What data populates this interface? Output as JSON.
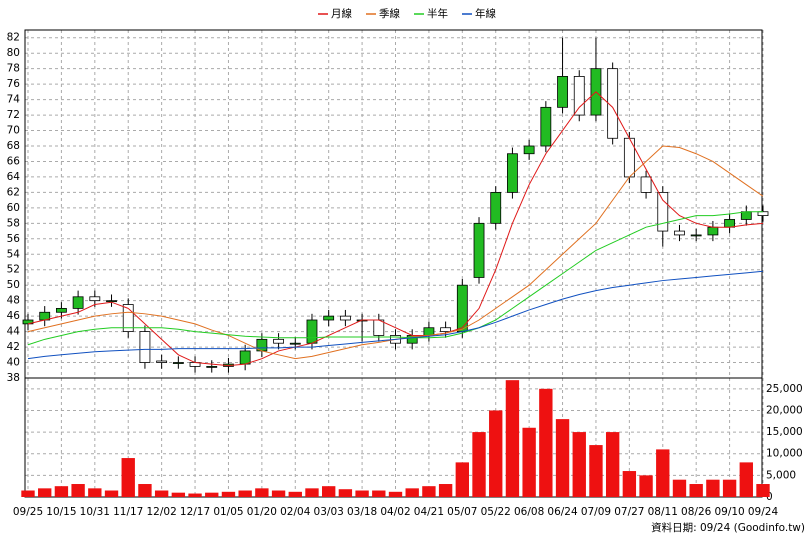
{
  "chart_data": {
    "type": "candlestick",
    "footnote": "資料日期: 09/24 (Goodinfo.tw)",
    "categories": [
      "09/25",
      null,
      "10/15",
      null,
      "10/31",
      null,
      "11/17",
      null,
      "12/02",
      null,
      "12/17",
      null,
      "01/05",
      null,
      "01/20",
      null,
      "02/04",
      null,
      "03/03",
      null,
      "03/18",
      null,
      "04/02",
      null,
      "04/21",
      null,
      "05/07",
      null,
      "05/22",
      null,
      "06/08",
      null,
      "06/24",
      null,
      "07/09",
      null,
      "07/27",
      null,
      "08/11",
      null,
      "08/26",
      null,
      "09/10",
      null,
      "09/24"
    ],
    "open": [
      45,
      45.5,
      46.5,
      47,
      48.5,
      48,
      47.5,
      44,
      40.2,
      40,
      40,
      39.5,
      39.5,
      39.8,
      41.5,
      43,
      42.5,
      42.5,
      45.5,
      46,
      45.5,
      45.5,
      43.5,
      42.5,
      43.5,
      44.5,
      44,
      51,
      58,
      62,
      67,
      68,
      73,
      77,
      72,
      78,
      69,
      64,
      62,
      57,
      56.5,
      56.5,
      57.5,
      58.5,
      59.5
    ],
    "high": [
      46.3,
      47.3,
      47.8,
      49.3,
      49.3,
      48.8,
      48.3,
      44.8,
      41,
      40.8,
      40.8,
      40.3,
      40.6,
      42.3,
      43.8,
      43.8,
      43.3,
      46.3,
      46.8,
      46.8,
      46.3,
      46.3,
      44.3,
      44.3,
      45.3,
      45.3,
      50.8,
      58.8,
      62.8,
      67.8,
      68.8,
      73.8,
      82,
      77.8,
      82,
      78.8,
      69.8,
      64.8,
      62.8,
      57.8,
      57.3,
      58.3,
      59.3,
      60.3,
      60.3
    ],
    "low": [
      44.2,
      44.7,
      45.7,
      46.2,
      47.2,
      47.2,
      43.2,
      39.2,
      39.2,
      39.2,
      38.7,
      38.7,
      38.7,
      39,
      40.7,
      41.7,
      41.7,
      41.7,
      44.7,
      44.7,
      42.7,
      42.7,
      41.7,
      41.7,
      42.7,
      43.2,
      43.2,
      50.2,
      57.2,
      61.2,
      66.2,
      67.2,
      72.2,
      71.2,
      71.2,
      68.2,
      63.2,
      61.2,
      55,
      55.7,
      55.7,
      55.7,
      56.7,
      57.7,
      58.2
    ],
    "close": [
      45.5,
      46.5,
      47,
      48.5,
      48,
      48,
      44,
      40,
      40,
      40,
      39.5,
      39.5,
      39.8,
      41.5,
      43,
      42.5,
      42.5,
      45.5,
      46,
      45.5,
      45.5,
      43.5,
      42.5,
      43.5,
      44.5,
      44,
      50,
      58,
      62,
      67,
      68,
      73,
      77,
      72,
      78,
      69,
      64,
      62,
      57,
      56.5,
      56.5,
      57.5,
      58.5,
      59.5,
      59
    ],
    "up_color": "#22bb22",
    "down_color": "#ffffff",
    "ylim": [
      38,
      83
    ],
    "yticks": [
      38,
      40,
      42,
      44,
      46,
      48,
      50,
      52,
      54,
      56,
      58,
      60,
      62,
      64,
      66,
      68,
      70,
      72,
      74,
      76,
      78,
      80,
      82
    ],
    "grid": true,
    "series": [
      {
        "name": "月線",
        "color": "#e01818",
        "values": [
          45,
          45.5,
          46,
          46.5,
          47.5,
          47.8,
          47,
          45,
          43,
          41,
          40,
          39.8,
          39.6,
          39.8,
          40.5,
          41.5,
          42,
          42.5,
          43.5,
          44.5,
          45.5,
          45.5,
          44.5,
          43.5,
          43.5,
          43.8,
          44.5,
          47,
          52,
          58,
          63,
          67,
          70,
          73,
          75,
          73,
          69,
          65,
          61,
          59,
          58,
          57.5,
          57.5,
          57.8,
          58
        ]
      },
      {
        "name": "季線",
        "color": "#e07020",
        "values": [
          44,
          44.5,
          45,
          45.5,
          46,
          46.3,
          46.5,
          46.3,
          46,
          45.5,
          45,
          44.2,
          43.5,
          42.5,
          41.5,
          41,
          40.5,
          40.8,
          41.3,
          41.8,
          42.3,
          42.6,
          43,
          43.3,
          43.5,
          43.8,
          44.3,
          45.5,
          47,
          48.5,
          50,
          52,
          54,
          56,
          58,
          61,
          64,
          66,
          68,
          67.8,
          67,
          66,
          64.5,
          63,
          61.5
        ]
      },
      {
        "name": "半年",
        "color": "#22cc22",
        "values": [
          42.3,
          43,
          43.5,
          44,
          44.3,
          44.5,
          44.5,
          44.5,
          44.5,
          44.3,
          44,
          43.8,
          43.6,
          43.4,
          43.3,
          43.2,
          43.2,
          43.2,
          43.3,
          43.3,
          43.3,
          43.3,
          43.3,
          43.2,
          43.2,
          43.3,
          43.8,
          44.5,
          45.5,
          47,
          48.5,
          50,
          51.5,
          53,
          54.5,
          55.5,
          56.5,
          57.5,
          58,
          58.5,
          59,
          59,
          59.2,
          59.5,
          59.5
        ]
      },
      {
        "name": "年線",
        "color": "#1050c0",
        "values": [
          40.5,
          40.8,
          41,
          41.2,
          41.4,
          41.5,
          41.6,
          41.7,
          41.7,
          41.8,
          41.8,
          41.8,
          41.8,
          41.8,
          41.9,
          41.9,
          42,
          42,
          42.2,
          42.4,
          42.6,
          42.8,
          43,
          43.2,
          43.4,
          43.6,
          44,
          44.5,
          45.2,
          46,
          46.8,
          47.5,
          48.2,
          48.8,
          49.3,
          49.7,
          50,
          50.3,
          50.6,
          50.8,
          51,
          51.2,
          51.4,
          51.6,
          51.8
        ]
      }
    ],
    "volume": {
      "color": "#ee1111",
      "values": [
        1500,
        2000,
        2500,
        3000,
        2000,
        1500,
        9000,
        3000,
        1500,
        1000,
        800,
        1000,
        1200,
        1500,
        2000,
        1500,
        1200,
        2000,
        2500,
        1800,
        1500,
        1500,
        1200,
        2000,
        2500,
        3000,
        8000,
        15000,
        20000,
        27000,
        16000,
        25000,
        18000,
        15000,
        12000,
        15000,
        6000,
        5000,
        11000,
        4000,
        3000,
        4000,
        4000,
        8000,
        3000
      ],
      "ylim": [
        0,
        27500
      ],
      "yticks": [
        0,
        {
          "value": 5000,
          "label": "5,000"
        },
        {
          "value": 10000,
          "label": "10,000"
        },
        {
          "value": 15000,
          "label": "15,000"
        },
        {
          "value": 20000,
          "label": "20,000"
        },
        {
          "value": 25000,
          "label": "25,000"
        }
      ]
    }
  }
}
